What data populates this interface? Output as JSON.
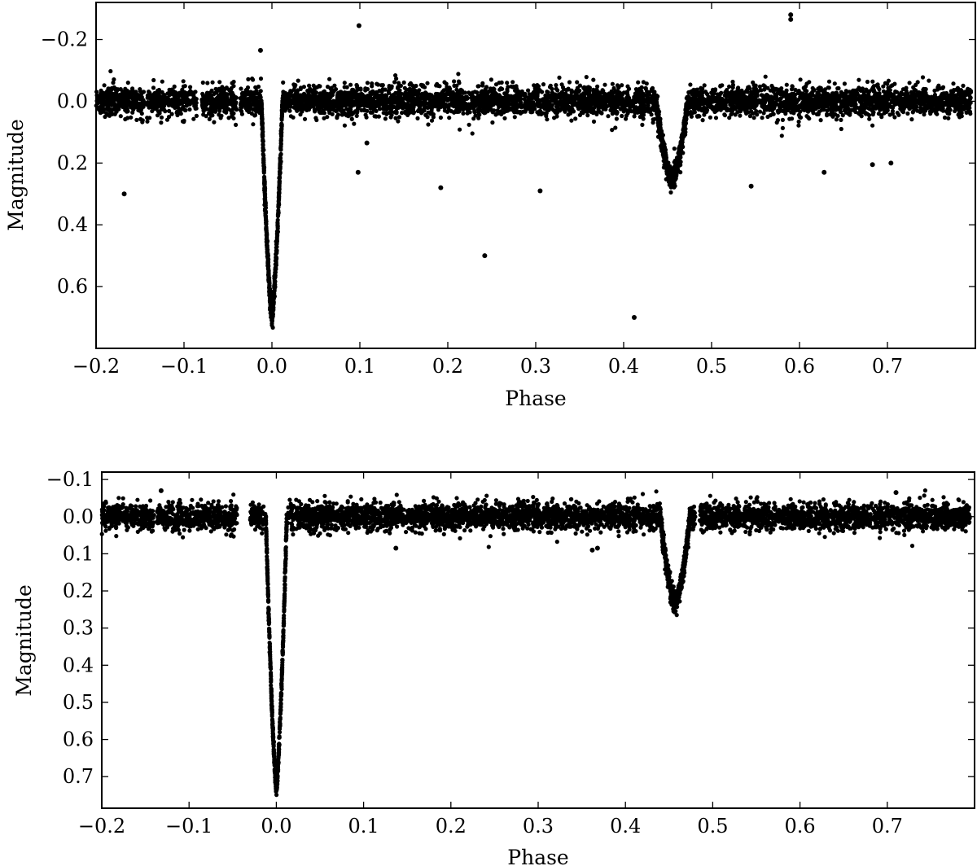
{
  "chart_data": [
    {
      "type": "scatter",
      "xlabel": "Phase",
      "ylabel": "Magnitude",
      "xlim": [
        -0.2,
        0.8
      ],
      "ylim": [
        0.8,
        -0.32
      ],
      "y_inverted": true,
      "xticks": [
        "−0.2",
        "−0.1",
        "0.0",
        "0.1",
        "0.2",
        "0.3",
        "0.4",
        "0.5",
        "0.6",
        "0.7"
      ],
      "xtick_values": [
        -0.2,
        -0.1,
        0.0,
        0.1,
        0.2,
        0.3,
        0.4,
        0.5,
        0.6,
        0.7
      ],
      "yticks": [
        "−0.2",
        "0.0",
        "0.2",
        "0.4",
        "0.6"
      ],
      "ytick_values": [
        -0.2,
        0.0,
        0.2,
        0.4,
        0.6
      ],
      "grid": false,
      "marker_color": "#000000",
      "light_curve": {
        "baseline_mag": 0.0,
        "baseline_scatter": 0.03,
        "data_gaps": [
          [
            -0.145,
            -0.142
          ],
          [
            -0.085,
            -0.08
          ],
          [
            -0.04,
            -0.036
          ],
          [
            0.005,
            0.01
          ]
        ],
        "primary_eclipse": {
          "center_phase": 0.0,
          "depth_mag": 0.7,
          "half_width_phase": 0.012
        },
        "secondary_eclipse": {
          "center_phase": 0.455,
          "depth_mag": 0.25,
          "half_width_phase": 0.018
        }
      },
      "outliers": [
        {
          "x": -0.168,
          "y": 0.3
        },
        {
          "x": -0.013,
          "y": -0.165
        },
        {
          "x": 0.098,
          "y": 0.23
        },
        {
          "x": 0.099,
          "y": -0.245
        },
        {
          "x": 0.108,
          "y": 0.135
        },
        {
          "x": 0.192,
          "y": 0.28
        },
        {
          "x": 0.242,
          "y": 0.5
        },
        {
          "x": 0.305,
          "y": 0.29
        },
        {
          "x": 0.412,
          "y": 0.7
        },
        {
          "x": 0.545,
          "y": 0.275
        },
        {
          "x": 0.59,
          "y": -0.265
        },
        {
          "x": 0.59,
          "y": -0.28
        },
        {
          "x": 0.628,
          "y": 0.23
        },
        {
          "x": 0.683,
          "y": 0.205
        },
        {
          "x": 0.704,
          "y": 0.2
        }
      ]
    },
    {
      "type": "scatter",
      "xlabel": "Phase",
      "ylabel": "Magnitude",
      "xlim": [
        -0.2,
        0.8
      ],
      "ylim": [
        0.785,
        -0.12
      ],
      "y_inverted": true,
      "xticks": [
        "−0.2",
        "−0.1",
        "0.0",
        "0.1",
        "0.2",
        "0.3",
        "0.4",
        "0.5",
        "0.6",
        "0.7"
      ],
      "xtick_values": [
        -0.2,
        -0.1,
        0.0,
        0.1,
        0.2,
        0.3,
        0.4,
        0.5,
        0.6,
        0.7
      ],
      "yticks": [
        "−0.1",
        "0.0",
        "0.1",
        "0.2",
        "0.3",
        "0.4",
        "0.5",
        "0.6",
        "0.7"
      ],
      "ytick_values": [
        -0.1,
        0.0,
        0.1,
        0.2,
        0.3,
        0.4,
        0.5,
        0.6,
        0.7
      ],
      "grid": false,
      "marker_color": "#000000",
      "light_curve": {
        "baseline_mag": 0.0,
        "baseline_scatter": 0.022,
        "data_gaps": [
          [
            -0.14,
            -0.137
          ],
          [
            -0.045,
            -0.03
          ],
          [
            -0.01,
            0.01
          ],
          [
            0.48,
            0.485
          ]
        ],
        "primary_eclipse": {
          "center_phase": 0.0,
          "depth_mag": 0.73,
          "half_width_phase": 0.012
        },
        "secondary_eclipse": {
          "center_phase": 0.457,
          "depth_mag": 0.23,
          "half_width_phase": 0.017
        }
      },
      "outliers": [
        {
          "x": -0.132,
          "y": -0.07
        },
        {
          "x": 0.137,
          "y": 0.085
        },
        {
          "x": 0.362,
          "y": 0.09
        },
        {
          "x": 0.368,
          "y": 0.085
        },
        {
          "x": 0.71,
          "y": -0.065
        }
      ]
    }
  ]
}
